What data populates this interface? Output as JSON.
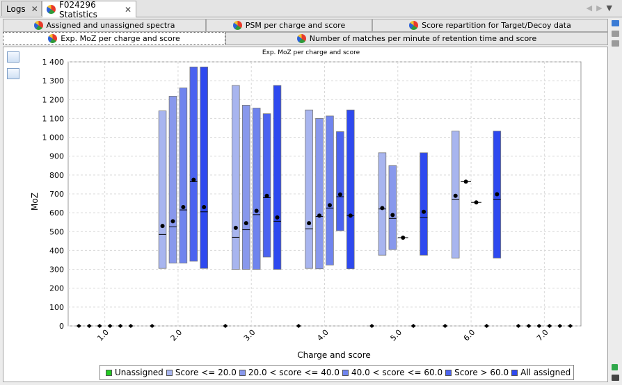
{
  "tabs": [
    {
      "label": "Logs",
      "active": false
    },
    {
      "label": "F024296 Statistics",
      "active": true
    }
  ],
  "subtabs_row1": [
    {
      "label": "Assigned and unassigned spectra"
    },
    {
      "label": "PSM per charge and score"
    },
    {
      "label": "Score repartition for Target/Decoy data"
    }
  ],
  "subtabs_row2": [
    {
      "label": "Exp. MoZ per charge and score",
      "active": true
    },
    {
      "label": "Number of matches per minute of retention time and score"
    }
  ],
  "icons": {
    "tab": "pie-chart-icon",
    "close": "close-icon",
    "left": "arrow-left-icon",
    "right": "arrow-right-icon",
    "menu": "dropdown-icon"
  },
  "colors": {
    "s1": "#a8b5ef",
    "s2": "#8898ec",
    "s3": "#6f84ee",
    "s4": "#4b63f0",
    "s5": "#2e49ef",
    "unassigned": "#22cc22"
  },
  "chart_data": {
    "type": "box",
    "title": "Exp. MoZ per charge and score",
    "xlabel": "Charge and score",
    "ylabel": "MoZ",
    "ylim": [
      0,
      1400
    ],
    "yticks": [
      0,
      100,
      200,
      300,
      400,
      500,
      600,
      700,
      800,
      900,
      1000,
      1100,
      1200,
      1300,
      1400
    ],
    "ytick_labels": [
      "0",
      "100",
      "200",
      "300",
      "400",
      "500",
      "600",
      "700",
      "800",
      "900",
      "1 000",
      "1 100",
      "1 200",
      "1 300",
      "1 400"
    ],
    "categories": [
      "1.0",
      "2.0",
      "3.0",
      "4.0",
      "5.0",
      "6.0",
      "7.0"
    ],
    "grid": true,
    "legend_position": "bottom",
    "series": [
      {
        "name": "Unassigned",
        "values": [
          {
            "min": 0,
            "max": 0,
            "median": 0,
            "mean": 0
          },
          {
            "min": 0,
            "max": 0,
            "median": 0,
            "mean": 0
          },
          {
            "min": 0,
            "max": 0,
            "median": 0,
            "mean": 0
          },
          {
            "min": 0,
            "max": 0,
            "median": 0,
            "mean": 0
          },
          {
            "min": 0,
            "max": 0,
            "median": 0,
            "mean": 0
          },
          {
            "min": 0,
            "max": 0,
            "median": 0,
            "mean": 0
          },
          {
            "min": 0,
            "max": 0,
            "median": 0,
            "mean": 0
          }
        ]
      },
      {
        "name": "Score <= 20.0",
        "values": [
          {
            "min": 0,
            "max": 0,
            "median": 0,
            "mean": 0
          },
          {
            "min": 305,
            "max": 1140,
            "median": 485,
            "mean": 530
          },
          {
            "min": 300,
            "max": 1275,
            "median": 470,
            "mean": 520
          },
          {
            "min": 305,
            "max": 1145,
            "median": 515,
            "mean": 545
          },
          {
            "min": 375,
            "max": 918,
            "median": 620,
            "mean": 625
          },
          {
            "min": 360,
            "max": 1033,
            "median": 670,
            "mean": 690
          },
          {
            "min": 0,
            "max": 0,
            "median": 0,
            "mean": 0
          }
        ]
      },
      {
        "name": "20.0 < score <= 40.0",
        "values": [
          {
            "min": 0,
            "max": 0,
            "median": 0,
            "mean": 0
          },
          {
            "min": 333,
            "max": 1218,
            "median": 525,
            "mean": 555
          },
          {
            "min": 300,
            "max": 1170,
            "median": 510,
            "mean": 545
          },
          {
            "min": 303,
            "max": 1100,
            "median": 580,
            "mean": 585
          },
          {
            "min": 405,
            "max": 850,
            "median": 570,
            "mean": 588
          },
          {
            "min": 765,
            "max": 765,
            "median": 765,
            "mean": 765
          },
          {
            "min": 0,
            "max": 0,
            "median": 0,
            "mean": 0
          }
        ]
      },
      {
        "name": "40.0 < score <= 60.0",
        "values": [
          {
            "min": 0,
            "max": 0,
            "median": 0,
            "mean": 0
          },
          {
            "min": 333,
            "max": 1262,
            "median": 615,
            "mean": 630
          },
          {
            "min": 300,
            "max": 1155,
            "median": 590,
            "mean": 610
          },
          {
            "min": 323,
            "max": 1113,
            "median": 625,
            "mean": 640
          },
          {
            "min": 468,
            "max": 468,
            "median": 468,
            "mean": 468
          },
          {
            "min": 655,
            "max": 655,
            "median": 655,
            "mean": 655
          },
          {
            "min": 0,
            "max": 0,
            "median": 0,
            "mean": 0
          }
        ]
      },
      {
        "name": "Score > 60.0",
        "values": [
          {
            "min": 0,
            "max": 0,
            "median": 0,
            "mean": 0
          },
          {
            "min": 343,
            "max": 1373,
            "median": 765,
            "mean": 775
          },
          {
            "min": 365,
            "max": 1125,
            "median": 680,
            "mean": 690
          },
          {
            "min": 505,
            "max": 1030,
            "median": 685,
            "mean": 697
          },
          {
            "min": 0,
            "max": 0,
            "median": 0,
            "mean": 0
          },
          {
            "min": 0,
            "max": 0,
            "median": 0,
            "mean": 0
          },
          {
            "min": 0,
            "max": 0,
            "median": 0,
            "mean": 0
          }
        ]
      },
      {
        "name": "All assigned",
        "values": [
          {
            "min": 0,
            "max": 0,
            "median": 0,
            "mean": 0
          },
          {
            "min": 305,
            "max": 1373,
            "median": 605,
            "mean": 630
          },
          {
            "min": 300,
            "max": 1275,
            "median": 555,
            "mean": 575
          },
          {
            "min": 303,
            "max": 1145,
            "median": 585,
            "mean": 585
          },
          {
            "min": 375,
            "max": 918,
            "median": 575,
            "mean": 605
          },
          {
            "min": 360,
            "max": 1033,
            "median": 670,
            "mean": 698
          },
          {
            "min": 0,
            "max": 0,
            "median": 0,
            "mean": 0
          }
        ]
      }
    ]
  }
}
